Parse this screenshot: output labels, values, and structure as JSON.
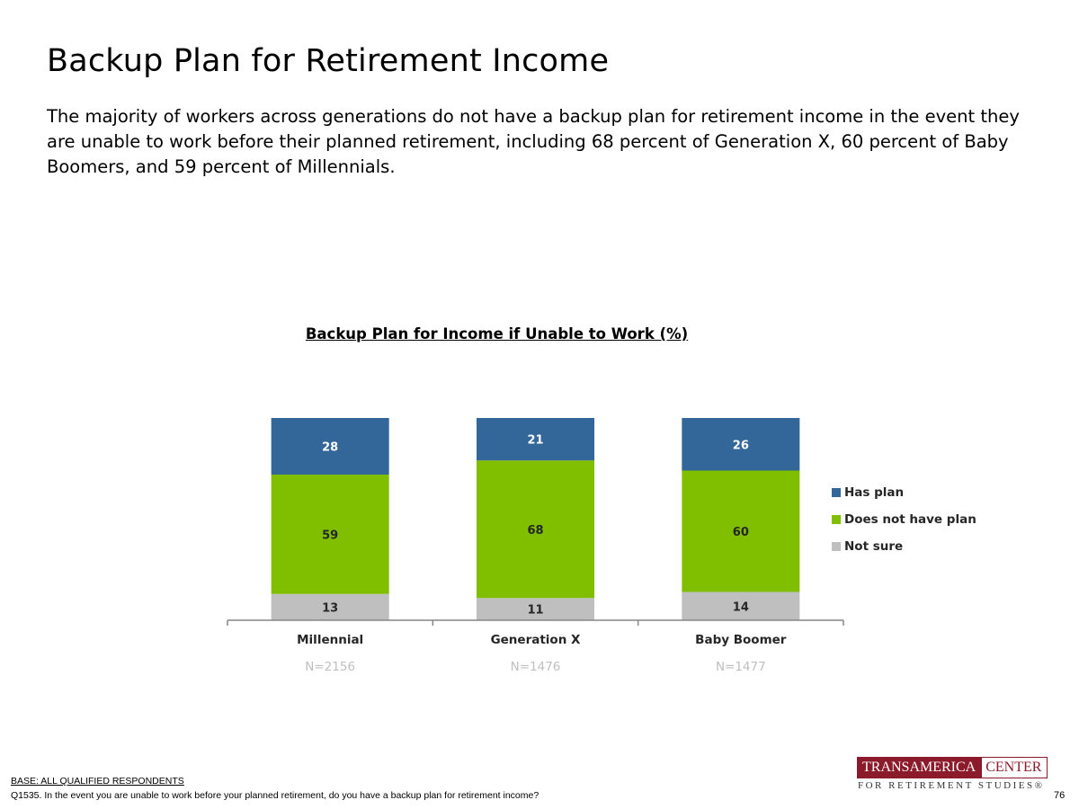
{
  "slide": {
    "title": "Backup Plan for Retirement Income",
    "subtitle": "The majority of workers across generations do not have a backup plan for retirement income in the event they are unable to work before their planned retirement, including 68 percent of Generation X, 60 percent of Baby Boomers, and 59 percent of Millennials.",
    "base_label": "BASE: ALL QUALIFIED RESPONDENTS",
    "question": "Q1535. In the event you are unable to work before your planned retirement, do you have a backup plan for retirement income?",
    "page_number": "76"
  },
  "logo": {
    "left_text": "TRANSAMERICA",
    "right_text": "CENTER",
    "bottom_text": "FOR RETIREMENT STUDIES®"
  },
  "chart_data": {
    "type": "bar",
    "stacked": true,
    "title": "Backup Plan for Income if Unable to Work (%)",
    "categories": [
      "Millennial",
      "Generation X",
      "Baby Boomer"
    ],
    "sample_sizes": [
      "N=2156",
      "N=1476",
      "N=1477"
    ],
    "series": [
      {
        "name": "Has plan",
        "values": [
          28,
          21,
          26
        ],
        "color": "#336699"
      },
      {
        "name": "Does not have plan",
        "values": [
          59,
          68,
          60
        ],
        "color": "#7fbf00"
      },
      {
        "name": "Not sure",
        "values": [
          13,
          11,
          14
        ],
        "color": "#bfbfbf"
      }
    ],
    "ylim": [
      0,
      100
    ],
    "legend_position": "right",
    "grid": false
  }
}
